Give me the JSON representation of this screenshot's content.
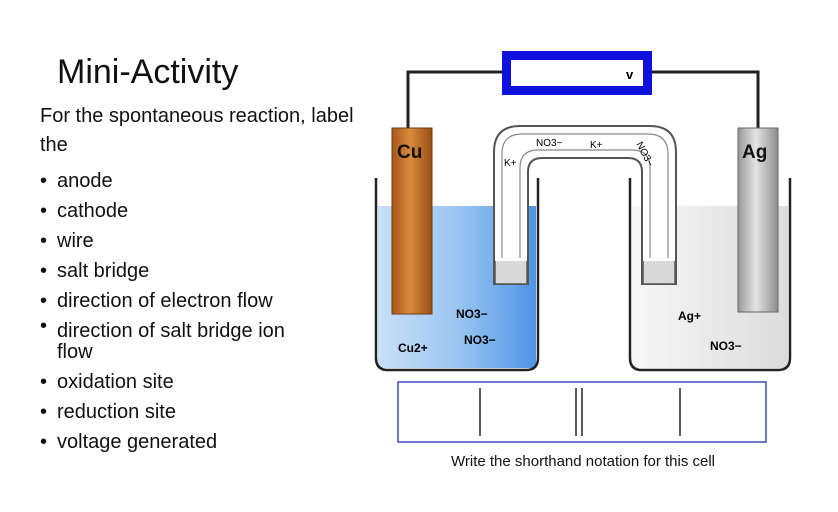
{
  "slide": {
    "title": "Mini-Activity",
    "intro": "For the spontaneous reaction, label the",
    "bullets": [
      "anode",
      "cathode",
      "wire",
      "salt bridge",
      "direction of electron flow",
      "direction of salt bridge ion flow",
      "oxidation site",
      "reduction site",
      "voltage generated"
    ]
  },
  "diagram": {
    "voltmeter_label": "v",
    "left_electrode": "Cu",
    "right_electrode": "Ag",
    "salt_bridge_ions": {
      "top_nitrate": "NO3−",
      "top_potassium": "K+",
      "left_potassium": "K+",
      "right_nitrate": "NO3−"
    },
    "left_solution": {
      "cation": "Cu2+",
      "anion_1": "NO3−",
      "anion_2": "NO3−"
    },
    "right_solution": {
      "cation": "Ag+",
      "anion": "NO3−"
    },
    "colors": {
      "voltmeter_frame": "#1010dd",
      "wire": "#222222",
      "copper": "#c8742a",
      "silver": "#bdbdbd",
      "left_solution": "#66a6ec",
      "right_solution": "#e6e6e6",
      "notation_border": "#3b4fbf"
    }
  },
  "notation": {
    "caption": "Write the shorthand notation for this cell"
  }
}
